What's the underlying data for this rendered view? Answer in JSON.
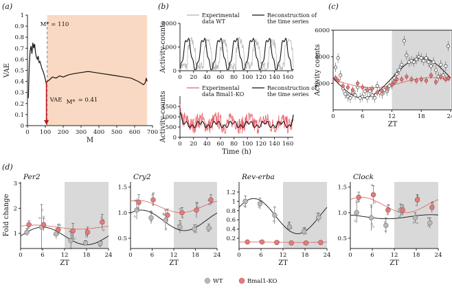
{
  "panel_letters": [
    "(a)",
    "(b)",
    "(c)",
    "(d)"
  ],
  "colors": {
    "shade_a": "#f9d9c3",
    "shade_night": "#d9d9d9",
    "wt_line": "#111111",
    "ko_line": "#e06a6a",
    "wt_raw": "#b5b5b5",
    "ko_raw": "#e8606a",
    "wt_point": "#b9b9b9",
    "ko_point": "#e27d7d",
    "arrow": "#c0141c"
  },
  "chart_data": [
    {
      "id": "a",
      "type": "line",
      "xlabel": "M",
      "ylabel": "VAE",
      "xlim": [
        0,
        700
      ],
      "ylim": [
        0,
        1.0
      ],
      "xticks": [
        0,
        100,
        200,
        300,
        400,
        500,
        600,
        700
      ],
      "yticks": [
        0,
        0.1,
        0.2,
        0.3,
        0.4,
        0.5,
        0.6,
        0.7,
        0.8,
        0.9,
        1.0
      ],
      "shaded_from": 110,
      "annotation_top": "M* = 110",
      "annotation_vae": "VAE",
      "annotation_vae_sub": "M*",
      "annotation_vae_value": "= 0.41",
      "vae_at_m_star": 0.41,
      "x": [
        5,
        10,
        15,
        20,
        25,
        30,
        35,
        40,
        45,
        50,
        55,
        60,
        65,
        70,
        75,
        80,
        85,
        90,
        95,
        100,
        105,
        110,
        120,
        140,
        160,
        180,
        200,
        230,
        260,
        300,
        340,
        380,
        420,
        460,
        500,
        540,
        580,
        620,
        650,
        660,
        665,
        670
      ],
      "y": [
        0.25,
        0.55,
        0.68,
        0.72,
        0.65,
        0.75,
        0.7,
        0.74,
        0.66,
        0.62,
        0.6,
        0.63,
        0.57,
        0.58,
        0.55,
        0.52,
        0.5,
        0.48,
        0.45,
        0.42,
        0.38,
        0.4,
        0.41,
        0.44,
        0.43,
        0.45,
        0.44,
        0.46,
        0.47,
        0.48,
        0.49,
        0.48,
        0.47,
        0.46,
        0.45,
        0.44,
        0.43,
        0.4,
        0.37,
        0.39,
        0.43,
        0.4
      ]
    },
    {
      "id": "b-top",
      "type": "line",
      "ylabel": "Activity counts",
      "xlim": [
        0,
        168
      ],
      "ylim": [
        0,
        2000
      ],
      "xticks": [
        0,
        20,
        40,
        60,
        80,
        100,
        120,
        140,
        160
      ],
      "yticks": [
        0,
        1000,
        2000
      ],
      "legend": [
        {
          "name": "Experimental",
          "name2": "data WT",
          "color": "#b5b5b5"
        },
        {
          "name": "Reconstruction of",
          "name2": "the time series",
          "color": "#111111"
        }
      ],
      "period": 24,
      "recon_mean": 700,
      "recon_amp": 650,
      "raw_amp": 1050
    },
    {
      "id": "b-bottom",
      "type": "line",
      "xlabel": "Time (h)",
      "ylabel": "Activity counts",
      "xlim": [
        0,
        168
      ],
      "ylim": [
        0,
        2000
      ],
      "xticks": [
        0,
        20,
        40,
        60,
        80,
        100,
        120,
        140,
        160
      ],
      "yticks": [
        0,
        500,
        1000,
        1500
      ],
      "legend": [
        {
          "name": "Experimental",
          "name2": "data Bmal1-KO",
          "color": "#e8606a"
        },
        {
          "name": "Reconstruction of",
          "name2": "the time series",
          "color": "#111111"
        }
      ],
      "recon_mean": 620,
      "recon_amp": 180,
      "raw_amp": 420
    },
    {
      "id": "c",
      "type": "scatter",
      "xlabel": "ZT",
      "ylabel": "Activity counts",
      "xlim": [
        0,
        24
      ],
      "ylim": [
        0,
        6000
      ],
      "xticks": [
        0,
        6,
        12,
        18,
        24
      ],
      "yticks": [
        2000,
        4000,
        6000
      ],
      "shaded_from": 12,
      "series": [
        {
          "name": "WT",
          "x": [
            0.5,
            1,
            1.5,
            2,
            2.5,
            3,
            3.5,
            4,
            4.5,
            5,
            5.5,
            6,
            6.5,
            7,
            7.5,
            8,
            8.5,
            9,
            9.5,
            10,
            10.5,
            11,
            11.5,
            12,
            12.5,
            13,
            13.5,
            14,
            14.5,
            15,
            15.5,
            16,
            16.5,
            17,
            17.5,
            18,
            18.5,
            19,
            19.5,
            20,
            20.5,
            21,
            21.5,
            22,
            22.5,
            23,
            23.5
          ],
          "y": [
            3200,
            3900,
            2600,
            1600,
            1200,
            1000,
            900,
            1300,
            1100,
            1700,
            900,
            1000,
            1400,
            900,
            1400,
            1100,
            900,
            1800,
            1300,
            1200,
            1500,
            1400,
            1800,
            1900,
            2400,
            2700,
            3000,
            3400,
            5200,
            4100,
            3600,
            3700,
            3600,
            3800,
            4000,
            3900,
            3700,
            3900,
            3600,
            3300,
            3600,
            3000,
            2500,
            3400,
            2600,
            3300,
            4800
          ]
        },
        {
          "name": "Bmal1-KO",
          "x": [
            0.5,
            1,
            2,
            3,
            4,
            5,
            6,
            7,
            8,
            9,
            10,
            11,
            12,
            12.5,
            13,
            14,
            15,
            16,
            17,
            18,
            19,
            20,
            21,
            22,
            23,
            23.5
          ],
          "y": [
            2400,
            2200,
            1800,
            1700,
            1500,
            2000,
            1700,
            1500,
            1600,
            1300,
            1400,
            1600,
            1900,
            2100,
            2300,
            2300,
            2500,
            2300,
            2200,
            2300,
            2200,
            2600,
            2100,
            2500,
            2300,
            2400
          ]
        }
      ],
      "wt_fit": {
        "mean": 2400,
        "amp": 1500,
        "peak": 18
      },
      "ko_fit": {
        "mean": 2050,
        "amp": 380,
        "peak": 20
      }
    },
    {
      "id": "d-per2",
      "type": "scatter",
      "title": "Per2",
      "ylabel": "Fold change",
      "xlabel": "ZT",
      "xlim": [
        0,
        24
      ],
      "ylim": [
        0.4,
        3.05
      ],
      "xticks": [
        0,
        6,
        12,
        18,
        24
      ],
      "yticks": [
        1,
        2,
        3
      ],
      "shaded_from": 12,
      "series": [
        {
          "name": "WT",
          "x": [
            2,
            6,
            10,
            14,
            18,
            22
          ],
          "y": [
            1.05,
            1.25,
            0.98,
            0.72,
            0.62,
            0.6
          ],
          "err": [
            0.15,
            0.9,
            0.2,
            0.35,
            0.1,
            0.1
          ]
        },
        {
          "name": "Bmal1-KO",
          "x": [
            2,
            6,
            10,
            14,
            18,
            22
          ],
          "y": [
            1.35,
            1.35,
            1.15,
            1.1,
            1.05,
            1.45
          ],
          "err": [
            0.15,
            0.25,
            0.2,
            0.3,
            0.2,
            0.3
          ]
        }
      ],
      "wt_fit": {
        "mean": 0.9,
        "amp": 0.35,
        "peak": 6
      },
      "ko_fit": {
        "mean": 1.25,
        "amp": 0.08,
        "peak": 4
      }
    },
    {
      "id": "d-cry2",
      "type": "scatter",
      "title": "Cry2",
      "xlabel": "ZT",
      "xlim": [
        0,
        24
      ],
      "ylim": [
        0.3,
        1.6
      ],
      "xticks": [
        0,
        6,
        12,
        18,
        24
      ],
      "yticks": [
        0.5,
        1.0,
        1.5
      ],
      "shaded_from": 12,
      "series": [
        {
          "name": "WT",
          "x": [
            2,
            6,
            10,
            14,
            18,
            22
          ],
          "y": [
            1.05,
            0.9,
            0.85,
            0.72,
            0.68,
            0.7
          ],
          "err": [
            0.18,
            0.12,
            0.2,
            0.12,
            0.08,
            0.08
          ]
        },
        {
          "name": "Bmal1-KO",
          "x": [
            2,
            6,
            10,
            14,
            18,
            22
          ],
          "y": [
            1.2,
            1.25,
            0.95,
            1.0,
            1.05,
            1.25
          ],
          "err": [
            0.15,
            0.12,
            0.12,
            0.1,
            0.15,
            0.1
          ]
        }
      ],
      "wt_fit": {
        "mean": 0.85,
        "amp": 0.2,
        "peak": 3
      },
      "ko_fit": {
        "mean": 1.12,
        "amp": 0.12,
        "peak": 2
      }
    },
    {
      "id": "d-reverba",
      "type": "scatter",
      "title": "Rev-erba",
      "xlabel": "ZT",
      "xlim": [
        0,
        24
      ],
      "ylim": [
        -0.02,
        1.42
      ],
      "xticks": [
        0,
        6,
        12,
        18,
        24
      ],
      "yticks": [
        0.2,
        0.4,
        0.6,
        0.8,
        1.0,
        1.2
      ],
      "shaded_from": 12,
      "series": [
        {
          "name": "WT",
          "x": [
            2,
            6,
            10,
            14,
            18,
            22
          ],
          "y": [
            1.0,
            0.95,
            0.7,
            0.45,
            0.35,
            0.65
          ],
          "err": [
            0.12,
            0.12,
            0.18,
            0.1,
            0.08,
            0.1
          ]
        },
        {
          "name": "Bmal1-KO",
          "x": [
            2,
            6,
            10,
            14,
            18,
            22
          ],
          "y": [
            0.12,
            0.12,
            0.11,
            0.1,
            0.1,
            0.11
          ],
          "err": [
            0.02,
            0.02,
            0.02,
            0.02,
            0.02,
            0.02
          ]
        }
      ],
      "wt_fit": {
        "mean": 0.68,
        "amp": 0.38,
        "peak": 4
      },
      "ko_fit": {
        "mean": 0.115,
        "amp": 0.005,
        "peak": 4
      }
    },
    {
      "id": "d-clock",
      "type": "scatter",
      "title": "Clock",
      "xlabel": "ZT",
      "xlim": [
        0,
        24
      ],
      "ylim": [
        0.3,
        1.6
      ],
      "xticks": [
        0,
        6,
        12,
        18,
        24
      ],
      "yticks": [
        0.5,
        1.0,
        1.5
      ],
      "shaded_from": 12,
      "series": [
        {
          "name": "WT",
          "x": [
            2,
            6,
            10,
            14,
            18,
            22
          ],
          "y": [
            1.0,
            0.9,
            0.75,
            1.05,
            0.9,
            0.8
          ],
          "err": [
            0.2,
            0.25,
            0.15,
            0.12,
            0.1,
            0.1
          ]
        },
        {
          "name": "Bmal1-KO",
          "x": [
            2,
            6,
            10,
            14,
            18,
            22
          ],
          "y": [
            1.3,
            1.35,
            1.05,
            1.05,
            1.25,
            1.1
          ],
          "err": [
            0.1,
            0.18,
            0.1,
            0.1,
            0.1,
            0.1
          ]
        }
      ],
      "wt_fit": {
        "mean": 0.92,
        "amp": 0.04,
        "peak": 22
      },
      "ko_fit": {
        "mean": 1.15,
        "amp": 0.15,
        "peak": 3
      }
    }
  ],
  "legend": {
    "wt_label": "WT",
    "ko_label": "Bmal1-KO"
  }
}
